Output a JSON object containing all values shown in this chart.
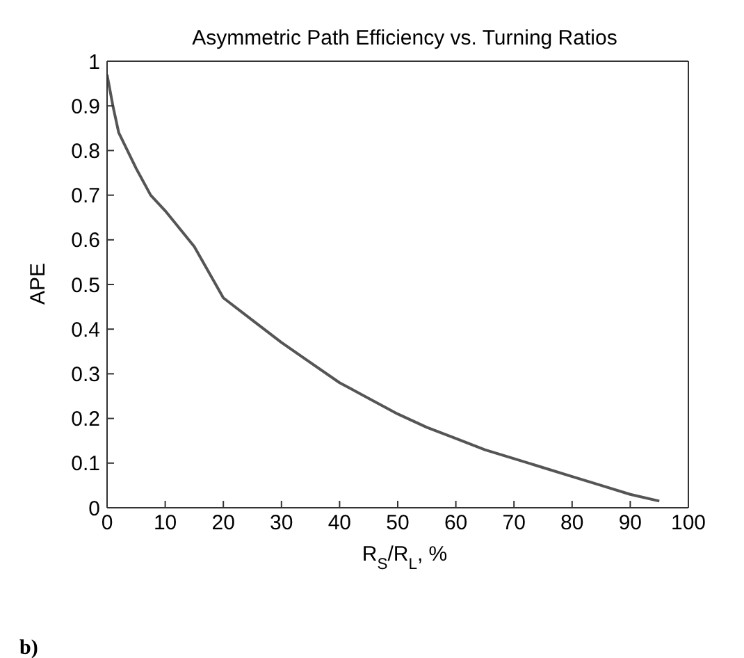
{
  "chart_data": {
    "type": "line",
    "title": "Asymmetric Path Efficiency vs. Turning Ratios",
    "xlabel": "R$_{S}$/R$_{L}$, %",
    "ylabel": "APE",
    "annotations": [
      "b)"
    ],
    "x": [
      0,
      1,
      2,
      3.5,
      5,
      7.5,
      10,
      12.5,
      15,
      20,
      25,
      30,
      35,
      40,
      45,
      50,
      55,
      60,
      65,
      70,
      75,
      80,
      85,
      90,
      95
    ],
    "series": [
      {
        "color": "#555555",
        "values": [
          0.97,
          0.9,
          0.84,
          0.8,
          0.76,
          0.7,
          0.665,
          0.625,
          0.585,
          0.47,
          0.42,
          0.37,
          0.325,
          0.28,
          0.245,
          0.21,
          0.18,
          0.155,
          0.13,
          0.11,
          0.09,
          0.07,
          0.05,
          0.03,
          0.015
        ]
      }
    ],
    "xlim": [
      0,
      100
    ],
    "xticks": [
      0,
      10,
      20,
      30,
      40,
      50,
      60,
      70,
      80,
      90,
      100
    ],
    "ylim": [
      0,
      1
    ],
    "yticks": [
      0,
      0.1,
      0.2,
      0.3,
      0.4,
      0.5,
      0.6,
      0.7,
      0.8,
      0.9,
      1
    ],
    "grid": false,
    "legend": false,
    "marker": "none",
    "line_style": "solid"
  }
}
